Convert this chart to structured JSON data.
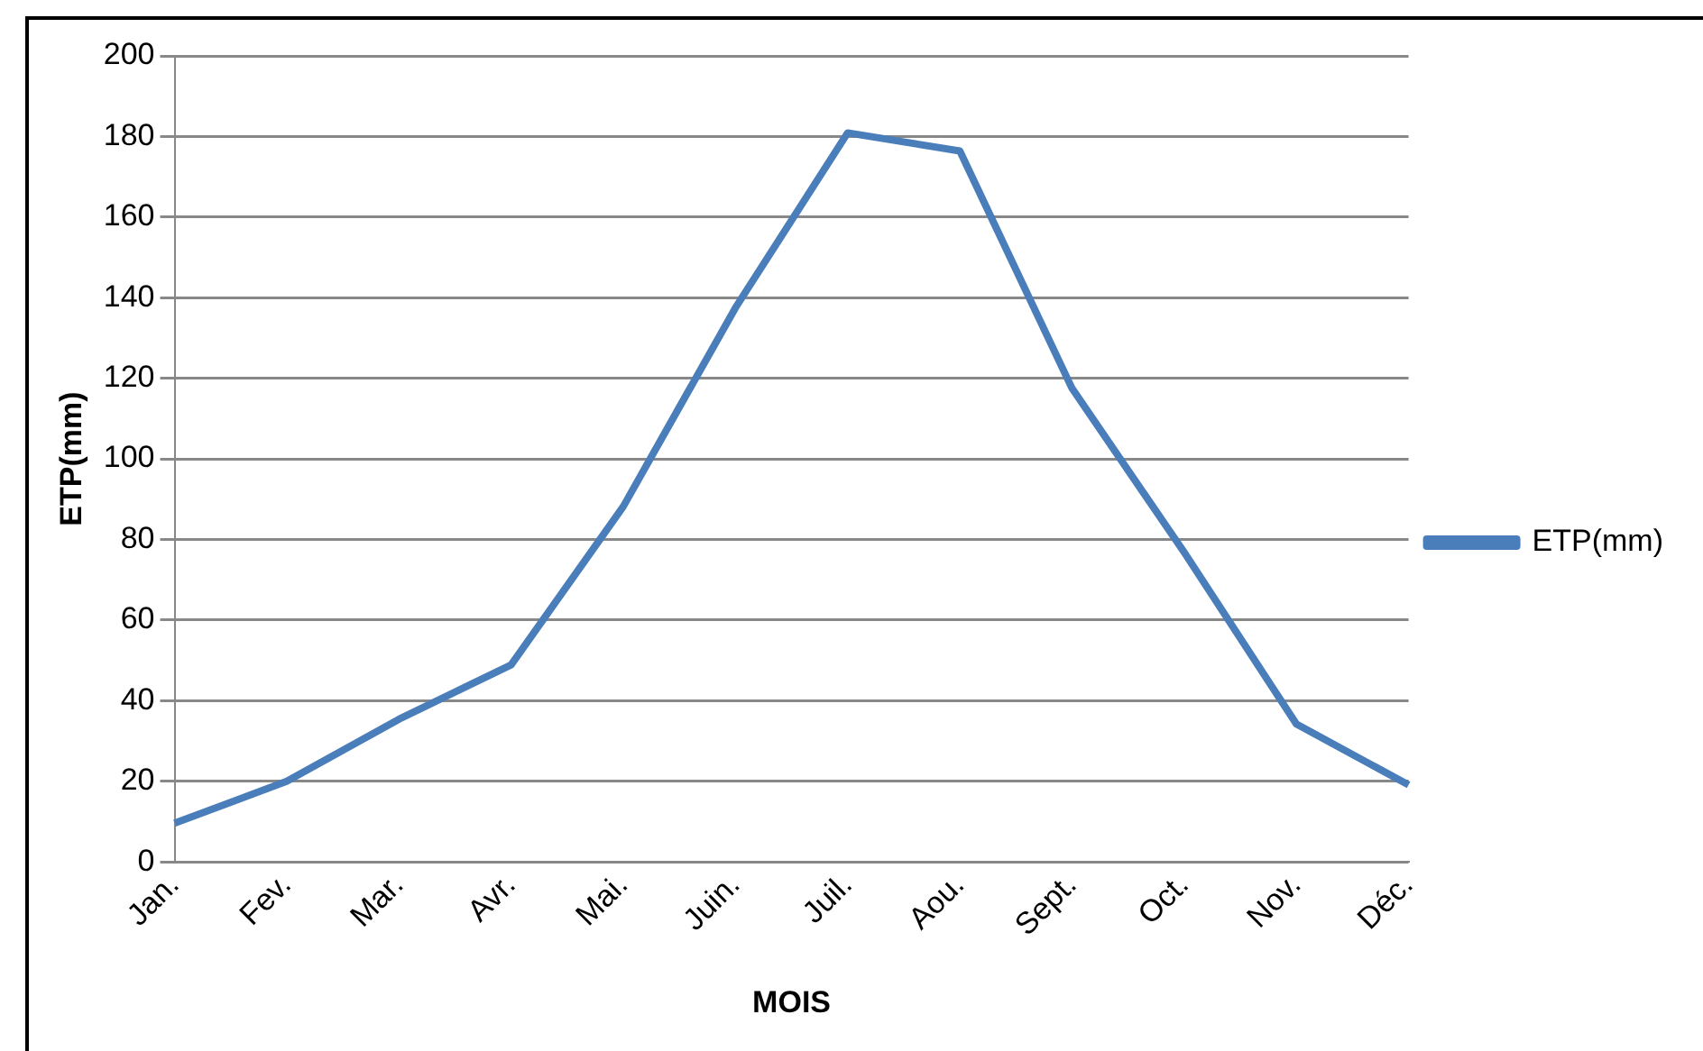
{
  "chart_data": {
    "type": "line",
    "xlabel": "MOIS",
    "ylabel": "ETP(mm)",
    "categories": [
      "Jan.",
      "Fev.",
      "Mar.",
      "Avr.",
      "Mai.",
      "Juin.",
      "Juil.",
      "Aou.",
      "Sept.",
      "Oct.",
      "Nov.",
      "Déc."
    ],
    "series": [
      {
        "name": "ETP(mm)",
        "color": "#4a7ebb",
        "values": [
          9.6,
          20,
          35.4,
          48.9,
          88.2,
          137.5,
          180.9,
          176.4,
          117.5,
          76.8,
          34.2,
          19.1
        ]
      }
    ],
    "ylim": [
      0,
      200
    ],
    "yticks": [
      0,
      20,
      40,
      60,
      80,
      100,
      120,
      140,
      160,
      180,
      200
    ],
    "grid": "y",
    "legend": "right",
    "marker": "none",
    "line_style": "solid"
  }
}
